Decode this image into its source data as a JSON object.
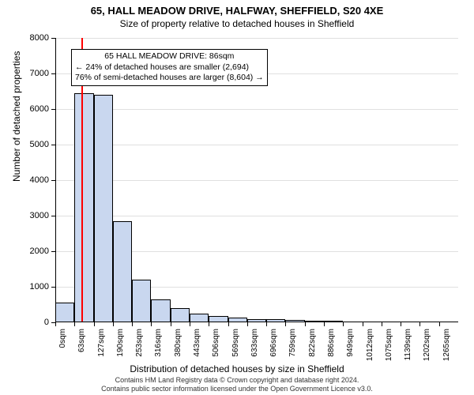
{
  "title_line1": "65, HALL MEADOW DRIVE, HALFWAY, SHEFFIELD, S20 4XE",
  "title_line2": "Size of property relative to detached houses in Sheffield",
  "ylabel": "Number of detached properties",
  "xlabel": "Distribution of detached houses by size in Sheffield",
  "footer_line1": "Contains HM Land Registry data © Crown copyright and database right 2024.",
  "footer_line2": "Contains public sector information licensed under the Open Government Licence v3.0.",
  "chart": {
    "type": "histogram",
    "ylim": [
      0,
      8000
    ],
    "yticks": [
      0,
      1000,
      2000,
      3000,
      4000,
      5000,
      6000,
      7000,
      8000
    ],
    "xticks": [
      "0sqm",
      "63sqm",
      "127sqm",
      "190sqm",
      "253sqm",
      "316sqm",
      "380sqm",
      "443sqm",
      "506sqm",
      "569sqm",
      "633sqm",
      "696sqm",
      "759sqm",
      "822sqm",
      "886sqm",
      "949sqm",
      "1012sqm",
      "1075sqm",
      "1139sqm",
      "1202sqm",
      "1265sqm"
    ],
    "bar_values": [
      550,
      6450,
      6400,
      2850,
      1200,
      650,
      400,
      250,
      170,
      130,
      100,
      80,
      60,
      50,
      40,
      30,
      25,
      20,
      15,
      12,
      10
    ],
    "bar_fill": "#c9d7ef",
    "bar_stroke": "#000000",
    "grid_color": "#e0e0e0",
    "background": "#ffffff",
    "marker_position_sqm": 86,
    "marker_color": "#ff0000",
    "annotation": {
      "line1": "65 HALL MEADOW DRIVE: 86sqm",
      "line2": "← 24% of detached houses are smaller (2,694)",
      "line3": "76% of semi-detached houses are larger (8,604) →"
    }
  }
}
